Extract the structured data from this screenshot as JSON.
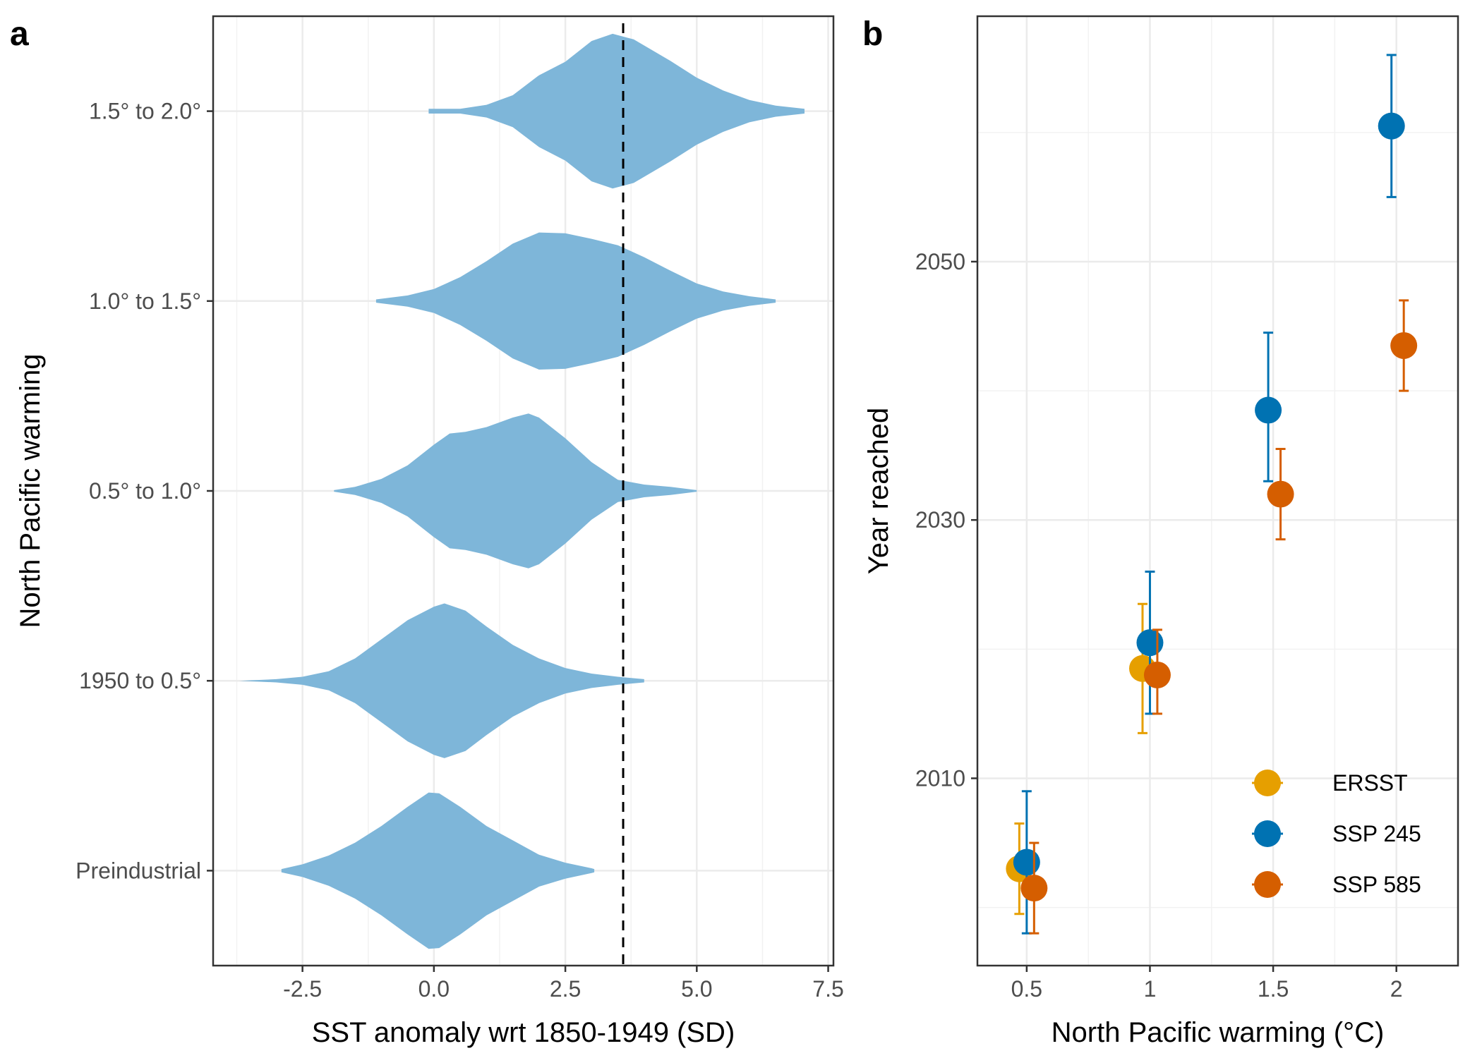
{
  "panels": {
    "a": {
      "letter": "a"
    },
    "b": {
      "letter": "b"
    }
  },
  "chart_data": [
    {
      "type": "violin",
      "panel": "a",
      "xlabel": "SST anomaly wrt 1850-1949 (SD)",
      "ylabel": "North Pacific warming",
      "xlim": [
        -4.2,
        7.6
      ],
      "xticks": [
        -2.5,
        0.0,
        2.5,
        5.0,
        7.5
      ],
      "xtick_labels": [
        "-2.5",
        "0.0",
        "2.5",
        "5.0",
        "7.5"
      ],
      "categories": [
        "Preindustrial",
        "1950 to 0.5°",
        "0.5° to 1.0°",
        "1.0° to 1.5°",
        "1.5° to 2.0°"
      ],
      "reference_line_x": 3.6,
      "reference_line_style": "dashed",
      "fill_color": "#7EB6D9",
      "grid": true,
      "violins": [
        {
          "category": "Preindustrial",
          "profile": [
            [
              -2.9,
              0.02
            ],
            [
              -2.5,
              0.08
            ],
            [
              -2.0,
              0.19
            ],
            [
              -1.5,
              0.35
            ],
            [
              -1.0,
              0.56
            ],
            [
              -0.5,
              0.8
            ],
            [
              -0.1,
              0.98
            ],
            [
              0.1,
              0.97
            ],
            [
              0.5,
              0.8
            ],
            [
              1.0,
              0.56
            ],
            [
              1.5,
              0.38
            ],
            [
              2.0,
              0.2
            ],
            [
              2.5,
              0.1
            ],
            [
              3.0,
              0.03
            ],
            [
              3.05,
              0.02
            ]
          ]
        },
        {
          "category": "1950 to 0.5°",
          "profile": [
            [
              -3.7,
              0.0
            ],
            [
              -3.0,
              0.02
            ],
            [
              -2.5,
              0.05
            ],
            [
              -2.0,
              0.12
            ],
            [
              -1.5,
              0.28
            ],
            [
              -1.0,
              0.52
            ],
            [
              -0.5,
              0.76
            ],
            [
              0.0,
              0.93
            ],
            [
              0.2,
              0.97
            ],
            [
              0.6,
              0.88
            ],
            [
              1.0,
              0.68
            ],
            [
              1.5,
              0.45
            ],
            [
              2.0,
              0.28
            ],
            [
              2.5,
              0.16
            ],
            [
              3.0,
              0.09
            ],
            [
              3.5,
              0.05
            ],
            [
              4.0,
              0.02
            ]
          ]
        },
        {
          "category": "0.5° to 1.0°",
          "profile": [
            [
              -1.9,
              0.01
            ],
            [
              -1.5,
              0.05
            ],
            [
              -1.0,
              0.15
            ],
            [
              -0.5,
              0.32
            ],
            [
              0.0,
              0.58
            ],
            [
              0.3,
              0.72
            ],
            [
              0.6,
              0.74
            ],
            [
              1.0,
              0.8
            ],
            [
              1.5,
              0.92
            ],
            [
              1.8,
              0.97
            ],
            [
              2.0,
              0.92
            ],
            [
              2.5,
              0.66
            ],
            [
              3.0,
              0.36
            ],
            [
              3.5,
              0.14
            ],
            [
              4.0,
              0.08
            ],
            [
              4.5,
              0.05
            ],
            [
              5.0,
              0.01
            ]
          ]
        },
        {
          "category": "1.0° to 1.5°",
          "profile": [
            [
              -1.1,
              0.02
            ],
            [
              -0.5,
              0.07
            ],
            [
              0.0,
              0.15
            ],
            [
              0.5,
              0.3
            ],
            [
              1.0,
              0.5
            ],
            [
              1.5,
              0.72
            ],
            [
              2.0,
              0.86
            ],
            [
              2.5,
              0.85
            ],
            [
              3.0,
              0.78
            ],
            [
              3.5,
              0.7
            ],
            [
              4.0,
              0.55
            ],
            [
              4.5,
              0.38
            ],
            [
              5.0,
              0.22
            ],
            [
              5.5,
              0.12
            ],
            [
              6.0,
              0.06
            ],
            [
              6.5,
              0.02
            ]
          ]
        },
        {
          "category": "1.5° to 2.0°",
          "profile": [
            [
              -0.1,
              0.03
            ],
            [
              0.5,
              0.03
            ],
            [
              1.0,
              0.08
            ],
            [
              1.5,
              0.2
            ],
            [
              2.0,
              0.45
            ],
            [
              2.5,
              0.62
            ],
            [
              3.0,
              0.88
            ],
            [
              3.4,
              0.97
            ],
            [
              3.8,
              0.9
            ],
            [
              4.5,
              0.63
            ],
            [
              5.0,
              0.42
            ],
            [
              5.5,
              0.26
            ],
            [
              6.0,
              0.14
            ],
            [
              6.5,
              0.07
            ],
            [
              7.05,
              0.03
            ]
          ]
        }
      ]
    },
    {
      "type": "scatter",
      "panel": "b",
      "xlabel": "North Pacific warming (°C)",
      "ylabel": "Year reached",
      "xlim": [
        0.3,
        2.25
      ],
      "ylim": [
        1995.5,
        2069
      ],
      "xticks": [
        0.5,
        1,
        1.5,
        2
      ],
      "xtick_labels": [
        "0.5",
        "1",
        "1.5",
        "2"
      ],
      "yticks": [
        2010,
        2030,
        2050
      ],
      "ytick_labels": [
        "2010",
        "2030",
        "2050"
      ],
      "legend_position": "bottom-right",
      "grid": true,
      "series": [
        {
          "name": "ERSST",
          "color": "#E69F00",
          "points": [
            {
              "x": 0.47,
              "y": 2003.0,
              "ymin": 1999.5,
              "ymax": 2006.5
            },
            {
              "x": 0.97,
              "y": 2018.5,
              "ymin": 2013.5,
              "ymax": 2023.5
            }
          ]
        },
        {
          "name": "SSP 245",
          "color": "#0072B2",
          "points": [
            {
              "x": 0.5,
              "y": 2003.5,
              "ymin": 1998.0,
              "ymax": 2009.0
            },
            {
              "x": 1.0,
              "y": 2020.5,
              "ymin": 2015.0,
              "ymax": 2026.0
            },
            {
              "x": 1.48,
              "y": 2038.5,
              "ymin": 2033.0,
              "ymax": 2044.5
            },
            {
              "x": 1.98,
              "y": 2060.5,
              "ymin": 2055.0,
              "ymax": 2066.0
            }
          ]
        },
        {
          "name": "SSP 585",
          "color": "#D55E00",
          "points": [
            {
              "x": 0.53,
              "y": 2001.5,
              "ymin": 1998.0,
              "ymax": 2005.0
            },
            {
              "x": 1.03,
              "y": 2018.0,
              "ymin": 2015.0,
              "ymax": 2021.5
            },
            {
              "x": 1.53,
              "y": 2032.0,
              "ymin": 2028.5,
              "ymax": 2035.5
            },
            {
              "x": 2.03,
              "y": 2043.5,
              "ymin": 2040.0,
              "ymax": 2047.0
            }
          ]
        }
      ]
    }
  ]
}
